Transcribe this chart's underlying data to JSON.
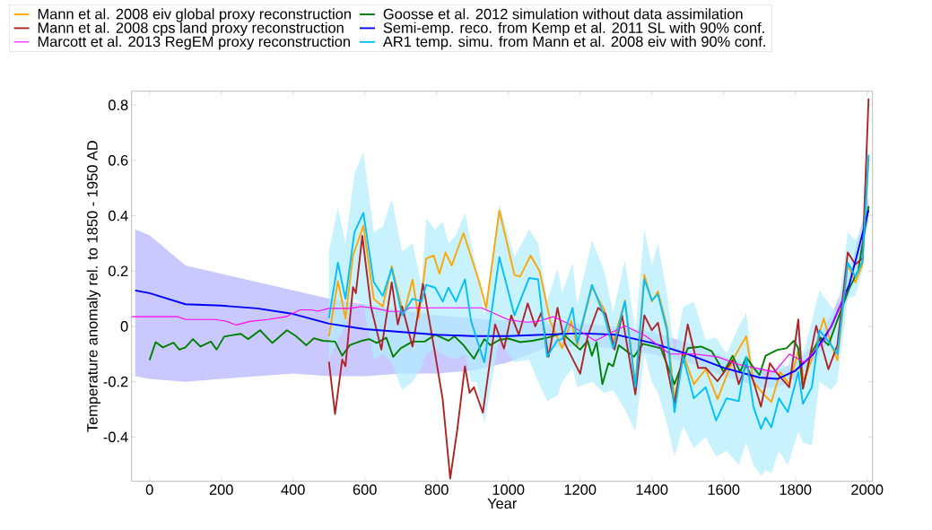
{
  "chart_data": {
    "type": "line",
    "xlabel": "Year",
    "ylabel": "Temperature anomaly rel. to 1850 - 1950 AD",
    "xlim": [
      -50,
      2015
    ],
    "ylim": [
      -0.56,
      0.85
    ],
    "xticks": [
      0,
      200,
      400,
      600,
      800,
      1000,
      1200,
      1400,
      1600,
      1800,
      2000
    ],
    "yticks": [
      -0.4,
      -0.2,
      0,
      0.2,
      0.4,
      0.6,
      0.8
    ],
    "legend": "top",
    "grid": false,
    "series": [
      {
        "name": "Mann et al. 2008 eiv global proxy reconstruction",
        "color": "#ffa500",
        "x": [
          500,
          525,
          546,
          567,
          596,
          625,
          650,
          675,
          708,
          733,
          750,
          771,
          792,
          808,
          825,
          842,
          875,
          917,
          938,
          975,
          1017,
          1033,
          1062,
          1087,
          1117,
          1150,
          1175,
          1192,
          1233,
          1267,
          1292,
          1325,
          1354,
          1379,
          1400,
          1417,
          1442,
          1463,
          1487,
          1517,
          1550,
          1583,
          1625,
          1663,
          1683,
          1712,
          1733,
          1758,
          1783,
          1808,
          1825,
          1850,
          1879,
          1900,
          1917,
          1946,
          1967,
          1987,
          2004
        ],
        "values": [
          -0.036,
          0.164,
          0.029,
          0.256,
          0.364,
          0.099,
          0.072,
          0.218,
          0.04,
          0.169,
          0.03,
          0.245,
          0.256,
          0.191,
          0.267,
          0.22,
          0.337,
          0.169,
          0.067,
          0.419,
          0.186,
          0.18,
          0.256,
          0.2,
          0.018,
          -0.079,
          0.02,
          -0.068,
          0.142,
          0.061,
          -0.06,
          0.094,
          -0.209,
          0.186,
          0.09,
          0.126,
          0.0,
          -0.263,
          -0.1,
          -0.209,
          -0.155,
          -0.263,
          -0.122,
          -0.036,
          -0.2,
          -0.246,
          -0.273,
          -0.165,
          -0.209,
          -0.09,
          -0.198,
          -0.1,
          0.029,
          -0.068,
          -0.122,
          0.224,
          0.159,
          0.224,
          0.608
        ]
      },
      {
        "name": "Mann et al. 2008 cps land proxy reconstruction",
        "color": "#b22222",
        "x": [
          500,
          517,
          537,
          546,
          567,
          575,
          593,
          617,
          646,
          675,
          692,
          704,
          733,
          762,
          796,
          817,
          838,
          858,
          879,
          892,
          904,
          929,
          963,
          988,
          1008,
          1029,
          1054,
          1075,
          1092,
          1112,
          1137,
          1158,
          1200,
          1221,
          1250,
          1271,
          1296,
          1317,
          1354,
          1379,
          1400,
          1417,
          1463,
          1500,
          1529,
          1550,
          1583,
          1625,
          1642,
          1663,
          1683,
          1704,
          1729,
          1746,
          1783,
          1808,
          1821,
          1833,
          1858,
          1892,
          1917,
          1946,
          1967,
          1987,
          2004
        ],
        "values": [
          -0.128,
          -0.317,
          -0.12,
          -0.144,
          0.142,
          0.12,
          0.327,
          0.072,
          -0.084,
          0.159,
          0.007,
          0.072,
          -0.073,
          0.153,
          -0.1,
          -0.263,
          -0.55,
          -0.37,
          -0.144,
          -0.24,
          -0.22,
          -0.312,
          0.007,
          -0.08,
          0.04,
          -0.03,
          0.083,
          0.0,
          0.05,
          -0.11,
          0.067,
          -0.063,
          -0.171,
          -0.036,
          0.067,
          0.045,
          -0.084,
          0.04,
          -0.246,
          0.04,
          -0.014,
          0.013,
          -0.279,
          0.007,
          -0.15,
          -0.15,
          -0.198,
          -0.122,
          -0.209,
          -0.139,
          -0.198,
          -0.29,
          -0.133,
          -0.165,
          -0.22,
          0.025,
          -0.225,
          -0.155,
          0.002,
          -0.155,
          -0.068,
          0.267,
          0.224,
          0.245,
          0.824
        ]
      },
      {
        "name": "Marcott et al. 2013 RegEM proxy reconstruction",
        "color": "#ff00ff",
        "x": [
          -50,
          80,
          100,
          180,
          210,
          242,
          280,
          330,
          380,
          420,
          450,
          470,
          500,
          560,
          590,
          630,
          670,
          708,
          725,
          925,
          1000,
          1050,
          1083,
          1125,
          1167,
          1242,
          1325,
          1383,
          1450,
          1517,
          1583,
          1642,
          1742,
          1783,
          1825,
          1883,
          1942
        ],
        "values": [
          0.035,
          0.035,
          0.025,
          0.025,
          0.02,
          0.005,
          0.018,
          0.025,
          0.035,
          0.06,
          0.06,
          0.055,
          0.065,
          0.065,
          0.072,
          0.065,
          0.054,
          0.054,
          0.067,
          0.067,
          0.024,
          0.015,
          0.018,
          0.035,
          0.01,
          -0.052,
          0.002,
          -0.035,
          -0.1,
          -0.1,
          -0.11,
          -0.138,
          -0.165,
          -0.1,
          -0.13,
          -0.047,
          0.126
        ]
      },
      {
        "name": "Goosse et al. 2012 simulation without data assimilation",
        "color": "#008000",
        "x": [
          0,
          17,
          37,
          67,
          83,
          100,
          121,
          142,
          171,
          187,
          208,
          225,
          254,
          275,
          308,
          342,
          383,
          408,
          437,
          458,
          483,
          517,
          537,
          558,
          592,
          612,
          633,
          660,
          679,
          700,
          733,
          767,
          796,
          833,
          850,
          875,
          904,
          933,
          950,
          975,
          1000,
          1033,
          1067,
          1108,
          1150,
          1200,
          1221,
          1233,
          1246,
          1262,
          1279,
          1292,
          1308,
          1350,
          1375,
          1425,
          1463,
          1500,
          1537,
          1567,
          1600,
          1625,
          1646,
          1663,
          1683,
          1700,
          1717,
          1750,
          1775,
          1796,
          1808,
          1821,
          1842,
          1871,
          1892,
          1925,
          1950,
          1975,
          2004
        ],
        "values": [
          -0.122,
          -0.057,
          -0.076,
          -0.059,
          -0.084,
          -0.076,
          -0.046,
          -0.073,
          -0.055,
          -0.084,
          -0.037,
          -0.033,
          -0.027,
          -0.046,
          -0.014,
          -0.06,
          -0.014,
          -0.035,
          -0.068,
          -0.043,
          -0.052,
          -0.055,
          -0.106,
          -0.068,
          -0.052,
          -0.046,
          -0.06,
          -0.041,
          -0.11,
          -0.079,
          -0.055,
          -0.055,
          -0.03,
          -0.052,
          -0.036,
          -0.068,
          -0.117,
          -0.046,
          -0.068,
          -0.049,
          -0.044,
          -0.057,
          -0.052,
          -0.041,
          -0.025,
          -0.084,
          -0.052,
          -0.106,
          -0.057,
          -0.209,
          -0.133,
          -0.144,
          -0.068,
          -0.11,
          -0.063,
          -0.079,
          -0.209,
          -0.079,
          -0.073,
          -0.09,
          -0.165,
          -0.106,
          -0.165,
          -0.111,
          -0.149,
          -0.176,
          -0.106,
          -0.085,
          -0.079,
          -0.052,
          -0.079,
          -0.225,
          -0.1,
          -0.041,
          -0.068,
          0.051,
          0.137,
          0.202,
          0.435
        ]
      },
      {
        "name": "Semi-emp. reco. from Kemp et al. 2011 SL with 90% conf.",
        "color": "#0000ff",
        "x": [
          -40,
          0,
          100,
          200,
          300,
          400,
          500,
          600,
          700,
          800,
          900,
          1000,
          1100,
          1200,
          1300,
          1400,
          1500,
          1600,
          1700,
          1750,
          1800,
          1850,
          1900,
          1950,
          2004
        ],
        "values": [
          0.13,
          0.12,
          0.08,
          0.075,
          0.065,
          0.045,
          0.01,
          -0.01,
          -0.02,
          -0.03,
          -0.035,
          -0.035,
          -0.03,
          -0.025,
          -0.03,
          -0.06,
          -0.1,
          -0.15,
          -0.185,
          -0.19,
          -0.16,
          -0.1,
          0.0,
          0.15,
          0.42
        ],
        "lower": [
          -0.18,
          -0.19,
          -0.2,
          -0.19,
          -0.18,
          -0.17,
          -0.18,
          -0.18,
          -0.17,
          -0.17,
          -0.16,
          -0.13,
          -0.08,
          -0.07,
          -0.08,
          -0.1,
          -0.13,
          -0.18,
          -0.22,
          -0.22,
          -0.19,
          -0.13,
          -0.04,
          0.11,
          0.38
        ],
        "upper": [
          0.35,
          0.33,
          0.22,
          0.19,
          0.16,
          0.13,
          0.1,
          0.08,
          0.06,
          0.04,
          0.03,
          0.02,
          0.01,
          0.01,
          0.0,
          -0.02,
          -0.06,
          -0.11,
          -0.15,
          -0.16,
          -0.13,
          -0.07,
          0.04,
          0.19,
          0.47
        ]
      },
      {
        "name": "AR1 temp. simu. from Mann et al. 2008 eiv with 90% conf.",
        "color": "#00bfff",
        "x": [
          500,
          525,
          546,
          571,
          596,
          625,
          650,
          675,
          704,
          733,
          758,
          771,
          796,
          817,
          833,
          854,
          879,
          896,
          913,
          933,
          975,
          1017,
          1058,
          1083,
          1108,
          1137,
          1150,
          1179,
          1192,
          1233,
          1267,
          1292,
          1325,
          1354,
          1379,
          1400,
          1417,
          1442,
          1463,
          1487,
          1517,
          1550,
          1579,
          1608,
          1642,
          1663,
          1683,
          1704,
          1717,
          1733,
          1754,
          1779,
          1808,
          1821,
          1846,
          1867,
          1900,
          1917,
          1946,
          1967,
          1987,
          2004
        ],
        "values": [
          0.03,
          0.23,
          0.1,
          0.34,
          0.41,
          0.16,
          0.11,
          0.21,
          0.04,
          0.1,
          0.09,
          0.15,
          0.14,
          0.09,
          0.14,
          0.09,
          0.17,
          0.02,
          -0.05,
          -0.13,
          0.25,
          0.04,
          0.175,
          0.17,
          -0.11,
          -0.05,
          -0.046,
          0.067,
          -0.06,
          0.15,
          0.04,
          -0.08,
          0.09,
          -0.22,
          0.17,
          0.094,
          0.116,
          -0.014,
          -0.31,
          -0.11,
          -0.26,
          -0.22,
          -0.34,
          -0.26,
          -0.27,
          -0.11,
          -0.29,
          -0.37,
          -0.33,
          -0.365,
          -0.26,
          -0.31,
          -0.165,
          -0.28,
          -0.22,
          -0.014,
          -0.068,
          -0.1,
          0.23,
          0.18,
          0.234,
          0.62
        ],
        "lower": [
          -0.12,
          -0.05,
          0.0,
          0.1,
          0.08,
          -0.12,
          -0.1,
          -0.13,
          -0.23,
          -0.2,
          -0.15,
          -0.1,
          -0.08,
          -0.1,
          -0.11,
          -0.12,
          -0.1,
          -0.2,
          -0.2,
          -0.35,
          -0.05,
          -0.13,
          -0.12,
          -0.2,
          -0.27,
          -0.25,
          -0.2,
          -0.15,
          -0.22,
          -0.2,
          -0.24,
          -0.23,
          -0.3,
          -0.38,
          -0.1,
          -0.2,
          -0.24,
          -0.35,
          -0.47,
          -0.36,
          -0.44,
          -0.4,
          -0.47,
          -0.45,
          -0.5,
          -0.42,
          -0.5,
          -0.54,
          -0.52,
          -0.53,
          -0.45,
          -0.5,
          -0.38,
          -0.42,
          -0.43,
          -0.2,
          -0.23,
          -0.2,
          0.1,
          0.11,
          0.2,
          0.52
        ],
        "upper": [
          0.27,
          0.43,
          0.3,
          0.55,
          0.63,
          0.34,
          0.36,
          0.46,
          0.27,
          0.3,
          0.15,
          0.39,
          0.35,
          0.38,
          0.3,
          0.33,
          0.41,
          0.3,
          0.2,
          0.04,
          0.44,
          0.25,
          0.35,
          0.3,
          0.09,
          0.21,
          0.12,
          0.23,
          0.08,
          0.31,
          0.2,
          0.05,
          0.24,
          -0.02,
          0.35,
          0.22,
          0.3,
          0.12,
          -0.1,
          0.07,
          0.09,
          -0.05,
          -0.04,
          -0.1,
          0.0,
          0.05,
          -0.16,
          -0.16,
          -0.2,
          -0.18,
          -0.13,
          -0.15,
          0.02,
          -0.1,
          0.02,
          0.13,
          0.07,
          0.05,
          0.34,
          0.31,
          0.36,
          0.66
        ]
      }
    ]
  }
}
